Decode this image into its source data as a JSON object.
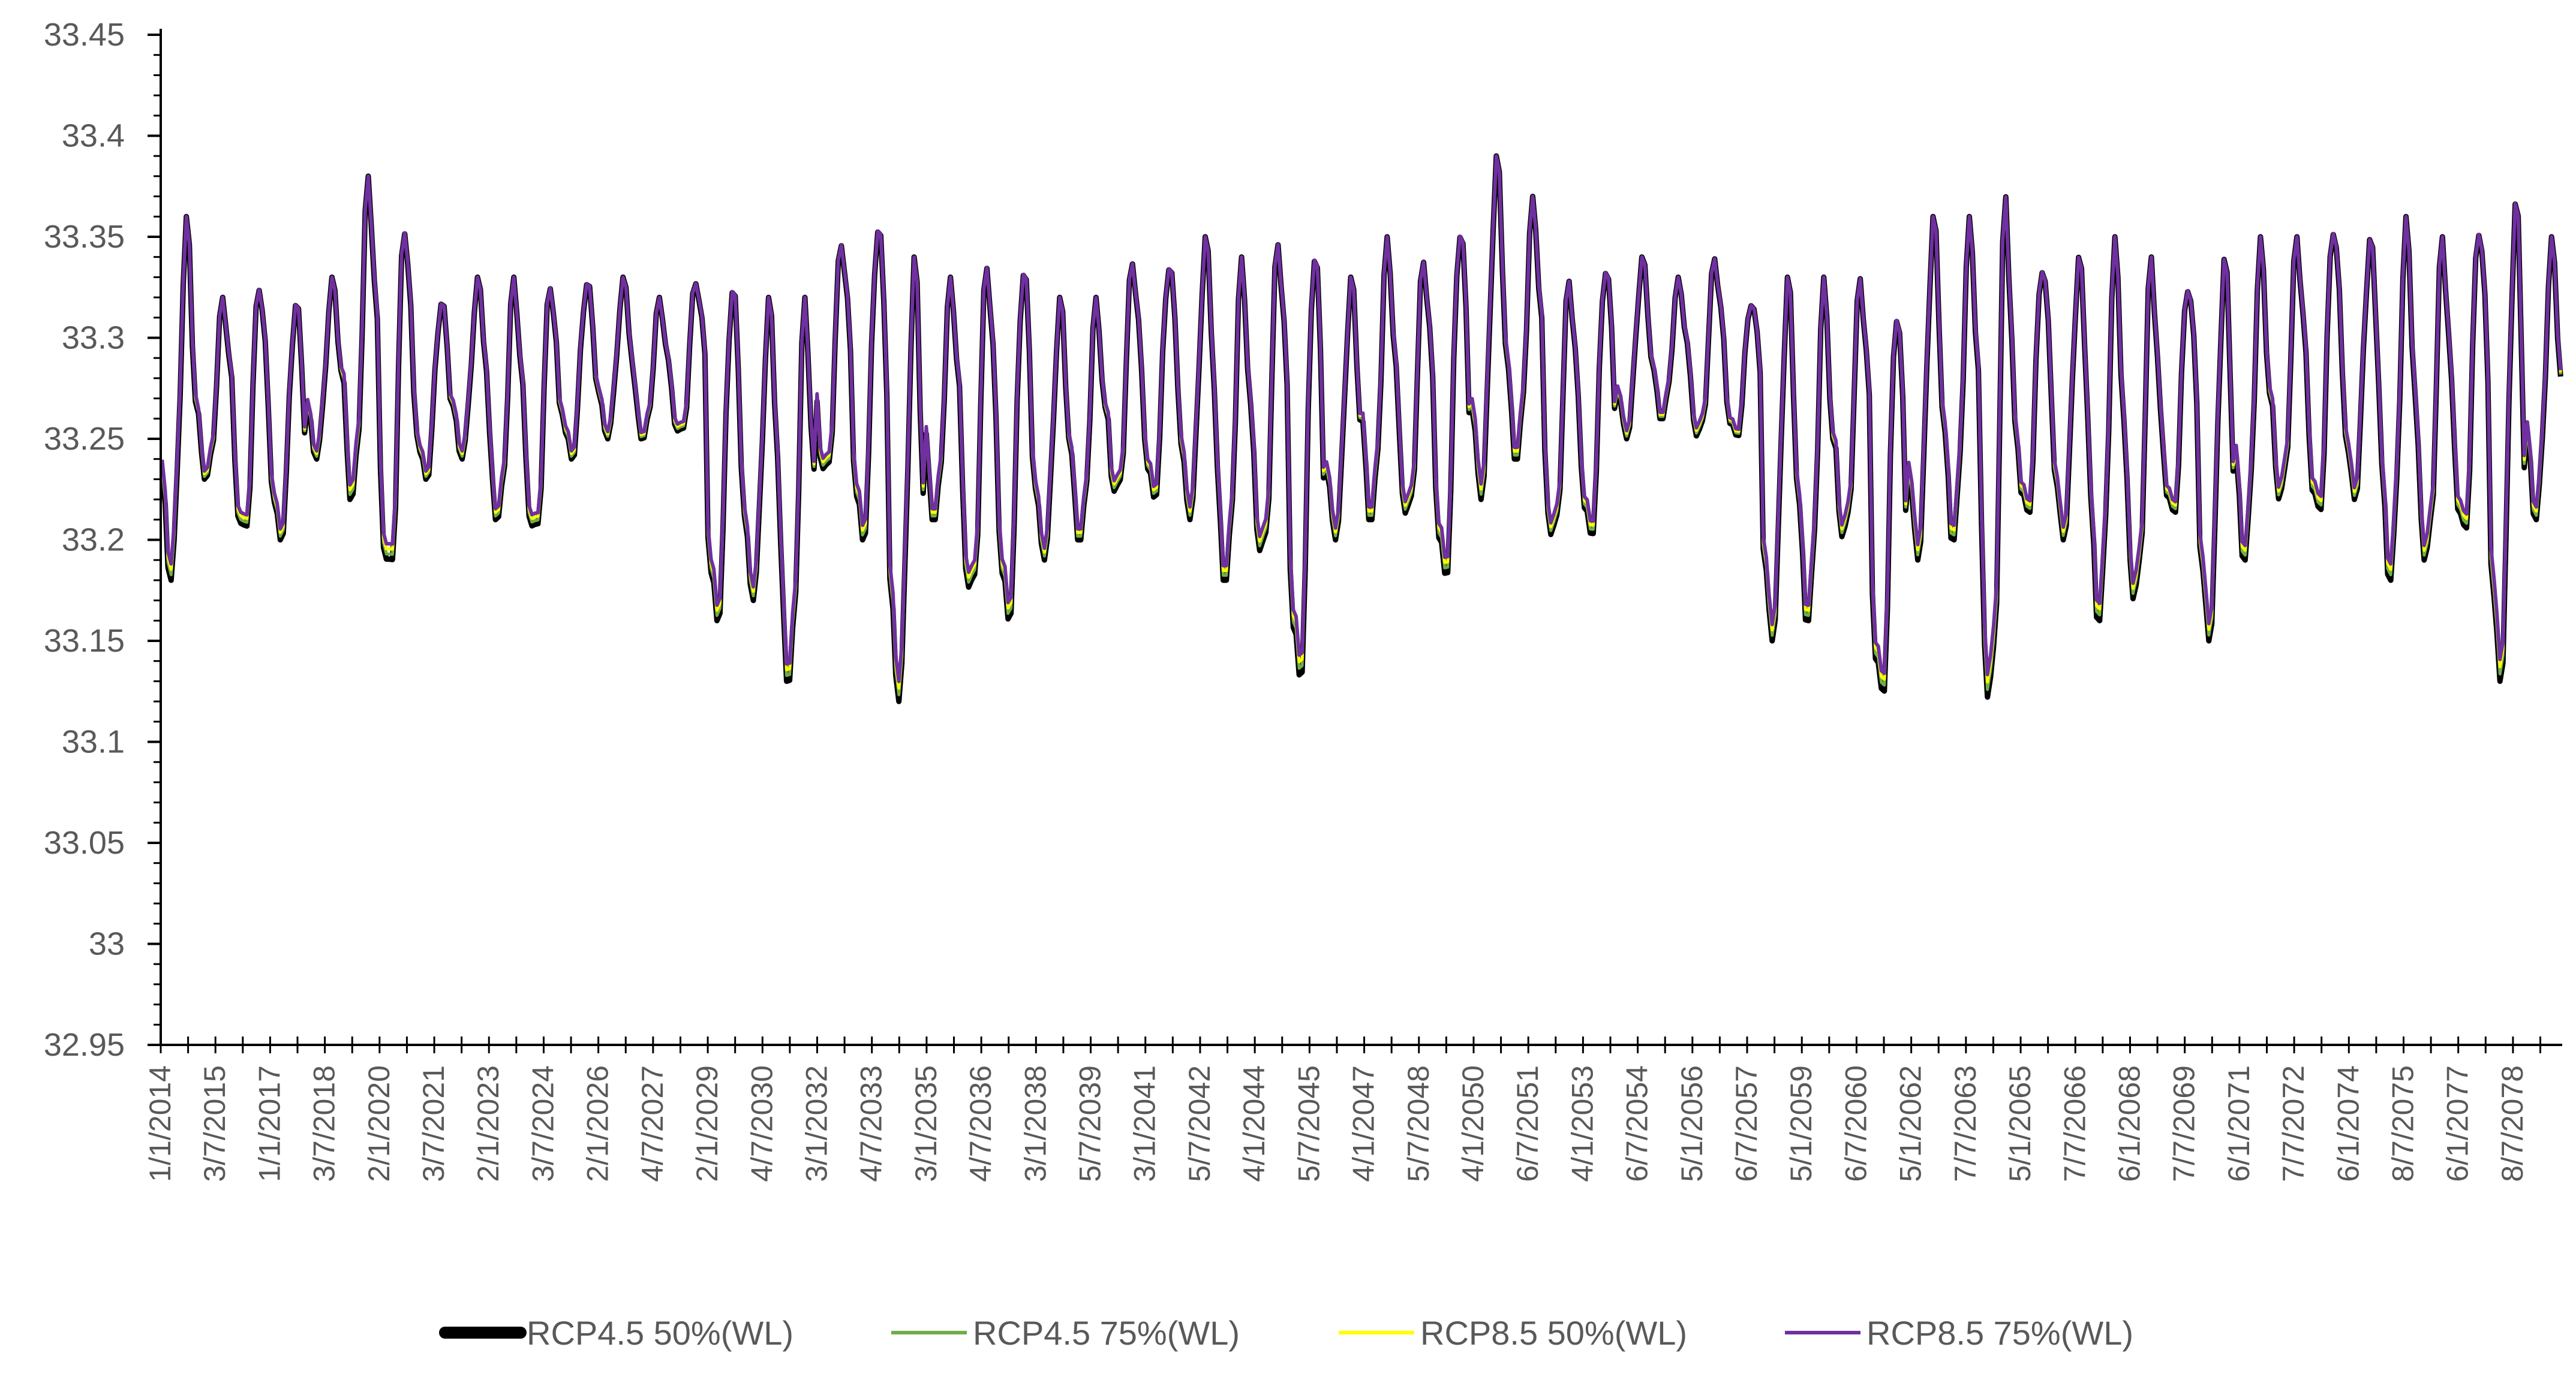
{
  "chart_data": {
    "type": "line",
    "title": "",
    "xlabel": "",
    "ylabel": "",
    "ylim": [
      32.95,
      33.45
    ],
    "y_ticks": [
      "33.45",
      "33.4",
      "33.35",
      "33.3",
      "33.25",
      "33.2",
      "33.15",
      "33.1",
      "33.05",
      "33",
      "32.95"
    ],
    "x_tick_labels": [
      "1/1/2014",
      "3/7/2015",
      "1/1/2017",
      "3/7/2018",
      "2/1/2020",
      "3/7/2021",
      "2/1/2023",
      "3/7/2024",
      "2/1/2026",
      "4/7/2027",
      "2/1/2029",
      "4/7/2030",
      "3/1/2032",
      "4/7/2033",
      "3/1/2035",
      "4/7/2036",
      "3/1/2038",
      "5/7/2039",
      "3/1/2041",
      "5/7/2042",
      "4/1/2044",
      "5/7/2045",
      "4/1/2047",
      "5/7/2048",
      "4/1/2050",
      "6/7/2051",
      "4/1/2053",
      "6/7/2054",
      "5/1/2056",
      "6/7/2057",
      "5/1/2059",
      "6/7/2060",
      "5/1/2062",
      "7/7/2063",
      "5/1/2065",
      "7/7/2066",
      "6/1/2068",
      "7/7/2069",
      "6/1/2071",
      "7/7/2072",
      "6/1/2074",
      "8/7/2075",
      "6/1/2077",
      "8/7/2078"
    ],
    "x_range": [
      "1/1/2014",
      "12/31/2079"
    ],
    "grid": false,
    "legend_position": "bottom",
    "series": [
      {
        "name": "RCP4.5 50%(WL)",
        "color": "#000000"
      },
      {
        "name": "RCP4.5 75%(WL)",
        "color": "#70ad47"
      },
      {
        "name": "RCP8.5 50%(WL)",
        "color": "#ffff00"
      },
      {
        "name": "RCP8.5 75%(WL)",
        "color": "#7030a0"
      }
    ],
    "annual_envelope": {
      "years": [
        2014,
        2015,
        2016,
        2017,
        2018,
        2019,
        2020,
        2021,
        2022,
        2023,
        2024,
        2025,
        2026,
        2027,
        2028,
        2029,
        2030,
        2031,
        2032,
        2033,
        2034,
        2035,
        2036,
        2037,
        2038,
        2039,
        2040,
        2041,
        2042,
        2043,
        2044,
        2045,
        2046,
        2047,
        2048,
        2049,
        2050,
        2051,
        2052,
        2053,
        2054,
        2055,
        2056,
        2057,
        2058,
        2059,
        2060,
        2061,
        2062,
        2063,
        2064,
        2065,
        2066,
        2067,
        2068,
        2069,
        2070,
        2071,
        2072,
        2073,
        2074,
        2075,
        2076,
        2077,
        2078,
        2079
      ],
      "max": [
        33.36,
        33.32,
        33.33,
        33.32,
        33.33,
        33.38,
        33.36,
        33.32,
        33.33,
        33.33,
        33.33,
        33.33,
        33.33,
        33.32,
        33.33,
        33.33,
        33.32,
        33.32,
        33.35,
        33.36,
        33.34,
        33.33,
        33.34,
        33.34,
        33.32,
        33.32,
        33.34,
        33.34,
        33.35,
        33.34,
        33.35,
        33.35,
        33.33,
        33.35,
        33.34,
        33.36,
        33.39,
        33.37,
        33.33,
        33.34,
        33.34,
        33.33,
        33.34,
        33.32,
        33.33,
        33.33,
        33.33,
        33.32,
        33.36,
        33.36,
        33.37,
        33.34,
        33.34,
        33.35,
        33.34,
        33.33,
        33.34,
        33.35,
        33.35,
        33.36,
        33.35,
        33.36,
        33.35,
        33.36,
        33.37,
        33.35
      ],
      "min": [
        33.18,
        33.23,
        33.2,
        33.2,
        33.24,
        33.22,
        33.18,
        33.23,
        33.24,
        33.21,
        33.2,
        33.24,
        33.25,
        33.25,
        33.25,
        33.16,
        33.17,
        33.13,
        33.23,
        33.2,
        33.12,
        33.21,
        33.17,
        33.16,
        33.19,
        33.2,
        33.22,
        33.22,
        33.21,
        33.18,
        33.19,
        33.13,
        33.2,
        33.21,
        33.21,
        33.18,
        33.22,
        33.24,
        33.2,
        33.2,
        33.25,
        33.26,
        33.25,
        33.25,
        33.15,
        33.16,
        33.2,
        33.12,
        33.19,
        33.2,
        33.12,
        33.21,
        33.2,
        33.16,
        33.17,
        33.21,
        33.15,
        33.19,
        33.22,
        33.21,
        33.22,
        33.18,
        33.19,
        33.2,
        33.13,
        33.21
      ]
    }
  }
}
